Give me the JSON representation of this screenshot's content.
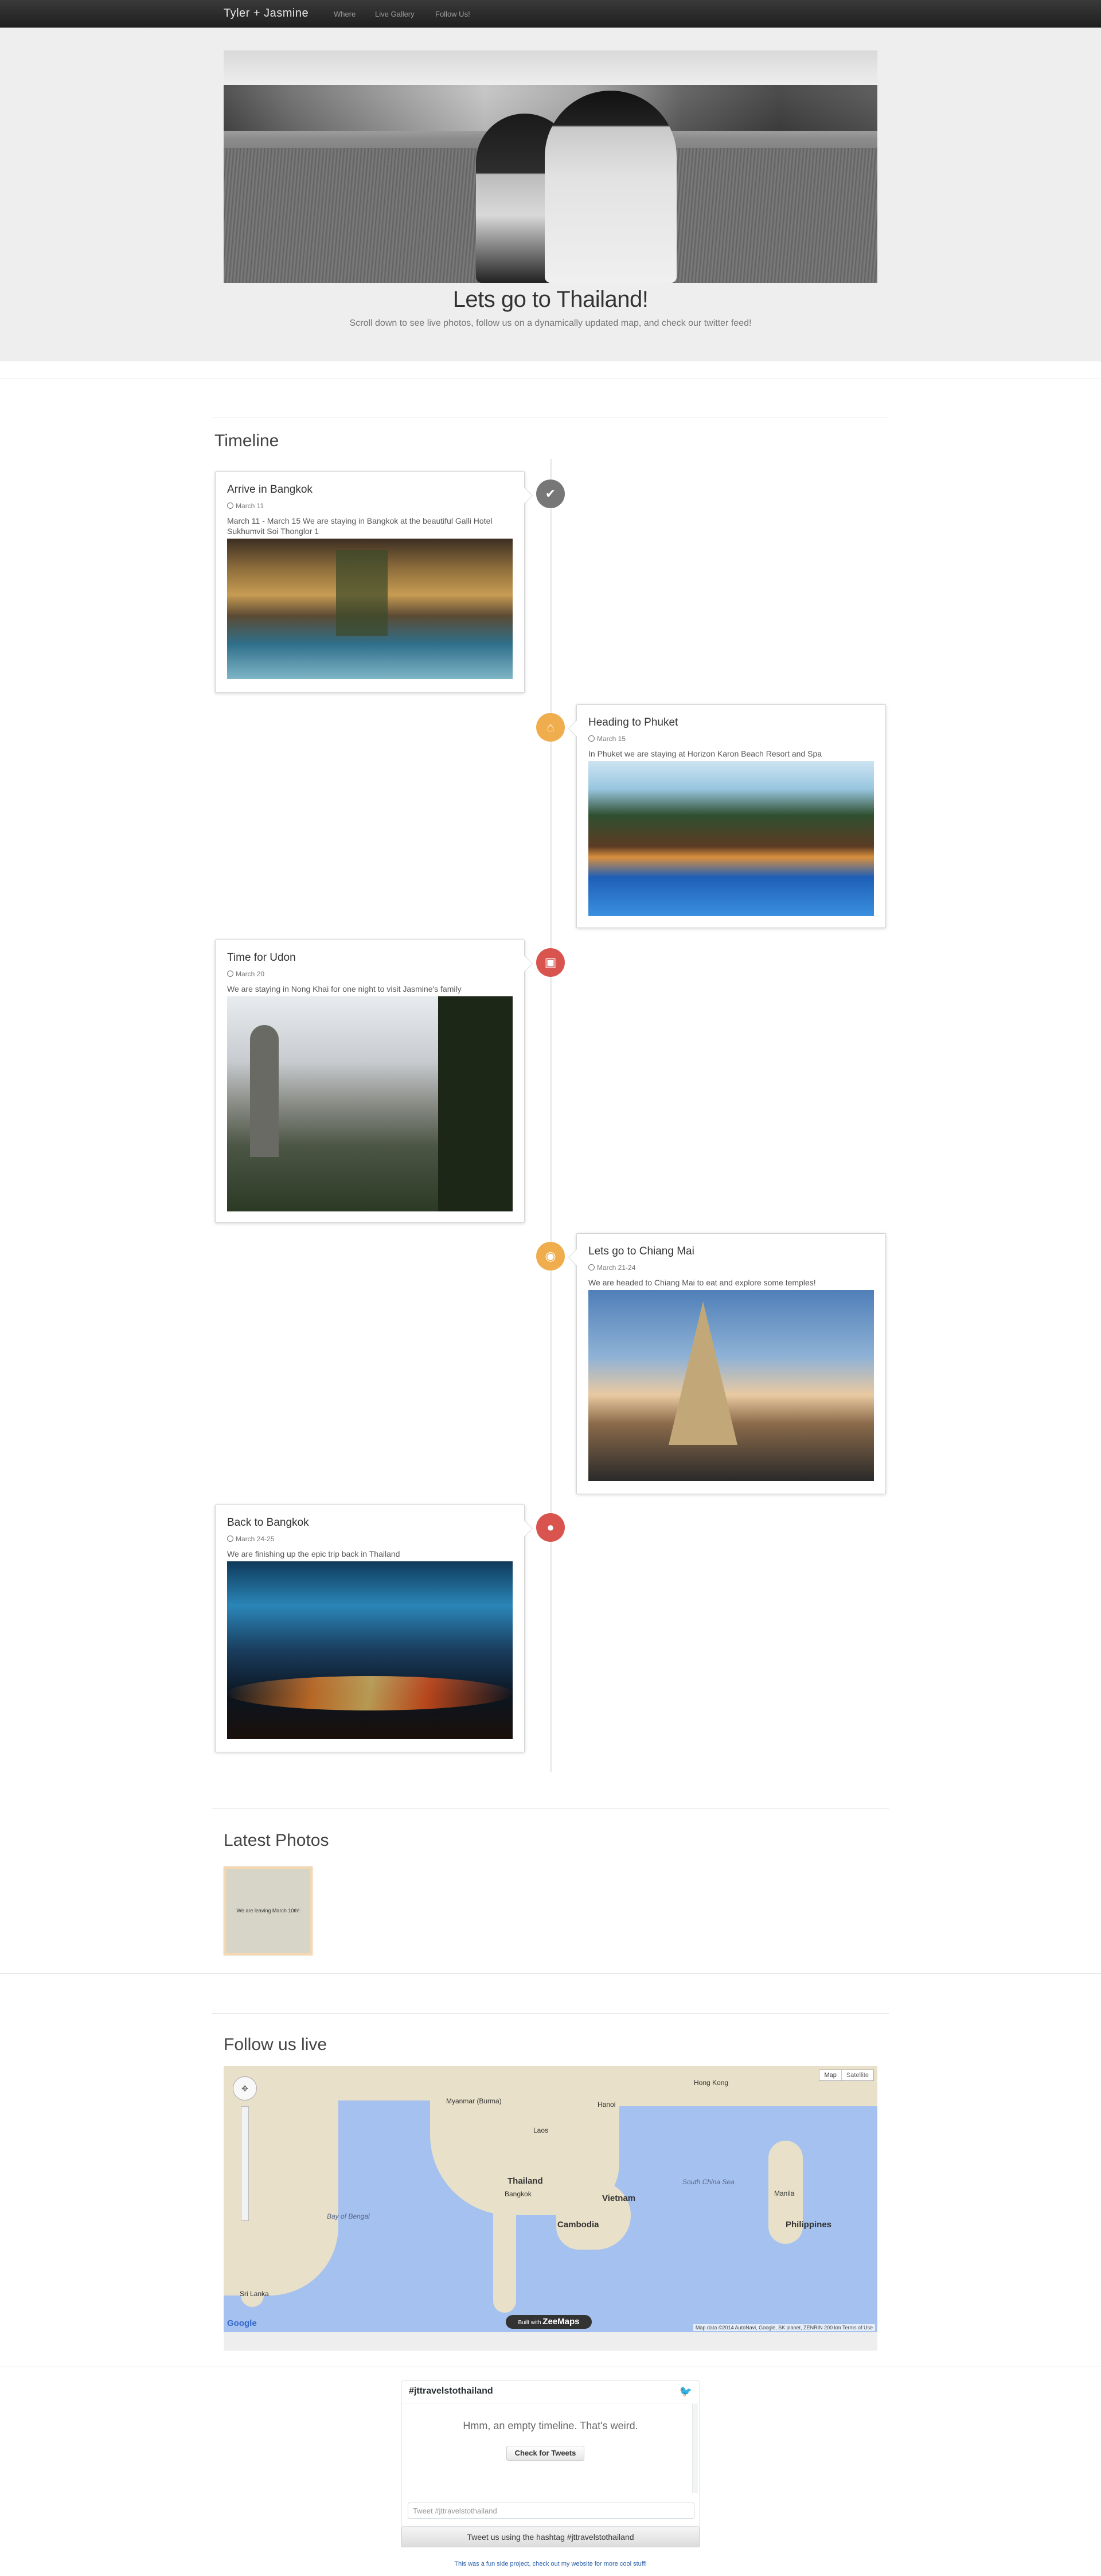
{
  "navbar": {
    "brand": "Tyler + Jasmine",
    "links": [
      "Where",
      "Live Gallery",
      "Follow Us!"
    ]
  },
  "hero": {
    "title": "Lets go to Thailand!",
    "subtitle": "Scroll down to see live photos, follow us on a dynamically updated map, and check our twitter feed!"
  },
  "timeline": {
    "title": "Timeline",
    "entries": [
      {
        "title": "Arrive in Bangkok",
        "date": "March 11",
        "text": "March 11 - March 15 We are staying in Bangkok at the beautiful Galli Hotel Sukhumvit Soi Thonglor 1",
        "icon": "check-icon",
        "color": "#777777"
      },
      {
        "title": "Heading to Phuket",
        "date": "March 15",
        "text": "In Phuket we are staying at Horizon Karon Beach Resort and Spa",
        "icon": "home-icon",
        "color": "#f0ad4e"
      },
      {
        "title": "Time for Udon",
        "date": "March 20",
        "text": "We are staying in Nong Khai for one night to visit Jasmine's family",
        "icon": "picture-icon",
        "color": "#d9534f"
      },
      {
        "title": "Lets go to Chiang Mai",
        "date": "March 21-24",
        "text": "We are headed to Chiang Mai to eat and explore some temples!",
        "icon": "camera-icon",
        "color": "#f0ad4e"
      },
      {
        "title": "Back to Bangkok",
        "date": "March 24-25",
        "text": "We are finishing up the epic trip back in Thailand",
        "icon": "map-marker-icon",
        "color": "#d9534f"
      }
    ]
  },
  "photos": {
    "title": "Latest Photos",
    "caption": "We are leaving March 10th!"
  },
  "map": {
    "title": "Follow us live",
    "type_map": "Map",
    "type_satellite": "Satellite",
    "built_with": "Built with",
    "built_brand": "ZeeMaps",
    "google": "Google",
    "attribution": "Map data ©2014 AutoNavi, Google, SK planet, ZENRIN   200 km   Terms of Use",
    "labels": {
      "myanmar": "Myanmar (Burma)",
      "laos": "Laos",
      "thailand": "Thailand",
      "bangkok": "Bangkok",
      "cambodia": "Cambodia",
      "vietnam": "Vietnam",
      "philippines": "Philippines",
      "sri_lanka": "Sri Lanka",
      "hong_kong": "Hong Kong",
      "bay_of_bengal": "Bay of Bengal",
      "south_china_sea": "South China Sea",
      "manila": "Manila",
      "hanoi": "Hanoi"
    }
  },
  "twitter": {
    "hashtag": "#jttravelstothailand",
    "empty_text": "Hmm, an empty timeline. That's weird.",
    "check_button": "Check for Tweets",
    "input_placeholder": "Tweet #jttravelstothailand",
    "tweet_button": "Tweet us using the hashtag #jttravelstothailand",
    "bird": "🐦"
  },
  "footer": {
    "note": "This was a fun side project, check out my website for more cool stuff!"
  }
}
